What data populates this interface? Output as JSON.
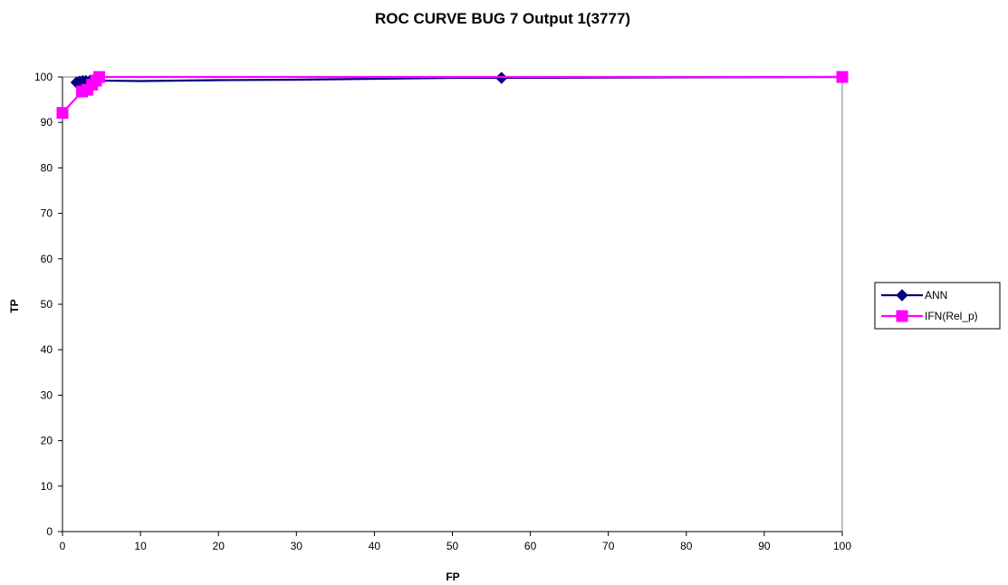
{
  "chart_data": {
    "type": "line",
    "title": "ROC CURVE BUG 7 Output 1(3777)",
    "xlabel": "FP",
    "ylabel": "TP",
    "xlim": [
      0,
      100
    ],
    "ylim": [
      0,
      100
    ],
    "x_ticks": [
      0,
      10,
      20,
      30,
      40,
      50,
      60,
      70,
      80,
      90,
      100
    ],
    "y_ticks": [
      0,
      10,
      20,
      30,
      40,
      50,
      60,
      70,
      80,
      90,
      100
    ],
    "legend_position": "right",
    "plot_area_fill": "#ffffff",
    "plot_area_border": "#808080",
    "series": [
      {
        "name": "ANN",
        "color": "#000080",
        "marker": "diamond",
        "points": [
          {
            "x": 1.8,
            "y": 98.8,
            "marker": true
          },
          {
            "x": 2.2,
            "y": 99.0,
            "marker": true
          },
          {
            "x": 2.6,
            "y": 99.1,
            "marker": true
          },
          {
            "x": 3.0,
            "y": 99.1,
            "marker": true
          },
          {
            "x": 3.5,
            "y": 99.1,
            "marker": true
          },
          {
            "x": 4.0,
            "y": 99.2,
            "marker": true
          },
          {
            "x": 4.5,
            "y": 99.2,
            "marker": true
          },
          {
            "x": 5.0,
            "y": 99.2,
            "marker": false
          },
          {
            "x": 10.0,
            "y": 99.1,
            "marker": false
          },
          {
            "x": 20.0,
            "y": 99.3,
            "marker": false
          },
          {
            "x": 30.0,
            "y": 99.4,
            "marker": false
          },
          {
            "x": 40.0,
            "y": 99.6,
            "marker": false
          },
          {
            "x": 50.0,
            "y": 99.8,
            "marker": false
          },
          {
            "x": 56.3,
            "y": 99.8,
            "marker": true
          },
          {
            "x": 100.0,
            "y": 100.0,
            "marker": true
          }
        ]
      },
      {
        "name": "IFN(Rel_p)",
        "color": "#ff00ff",
        "marker": "square",
        "points": [
          {
            "x": 0.0,
            "y": 92.1,
            "marker": true
          },
          {
            "x": 2.5,
            "y": 96.8,
            "marker": true
          },
          {
            "x": 3.2,
            "y": 97.2,
            "marker": true
          },
          {
            "x": 3.8,
            "y": 98.3,
            "marker": true
          },
          {
            "x": 4.3,
            "y": 99.2,
            "marker": true
          },
          {
            "x": 4.7,
            "y": 100.0,
            "marker": true
          },
          {
            "x": 100.0,
            "y": 100.0,
            "marker": true
          }
        ]
      }
    ]
  }
}
